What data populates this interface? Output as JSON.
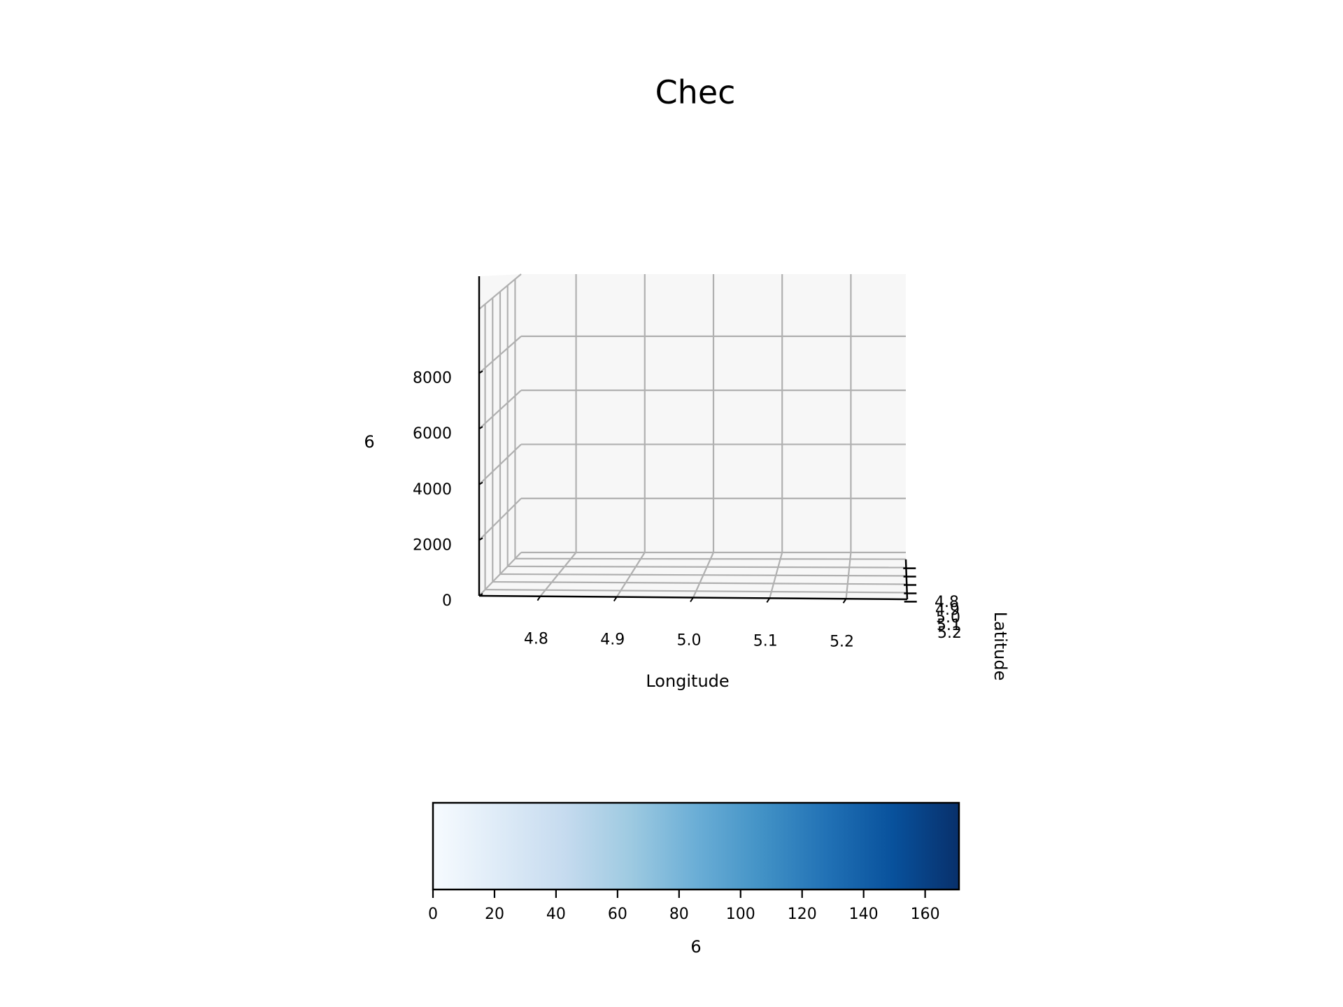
{
  "chart_data": {
    "type": "3d-bar",
    "title": "Chec",
    "xlabel": "Longitude",
    "ylabel": "Latitude",
    "zlabel": "6",
    "x_ticks": [
      "4.8",
      "4.9",
      "5.0",
      "5.1",
      "5.2"
    ],
    "y_ticks": [
      "4.8",
      "4.9",
      "5.0",
      "5.1",
      "5.2"
    ],
    "z_ticks": [
      "0",
      "2000",
      "4000",
      "6000",
      "8000"
    ],
    "xlim": [
      4.72,
      5.28
    ],
    "ylim": [
      4.72,
      5.28
    ],
    "zlim": [
      0,
      10300
    ],
    "values": [],
    "grid": true,
    "colorbar": {
      "label": "6",
      "colormap": "Blues",
      "range": [
        0,
        171
      ],
      "ticks": [
        "0",
        "20",
        "40",
        "60",
        "80",
        "100",
        "120",
        "140",
        "160"
      ],
      "orientation": "horizontal",
      "colors": [
        "#f7fbff",
        "#deebf7",
        "#c6dbef",
        "#9ecae1",
        "#6baed6",
        "#4292c6",
        "#2171b5",
        "#08519c",
        "#08306b"
      ]
    },
    "colors": {
      "pane": "#f7f7f7",
      "grid": "#b0b0b0",
      "axis": "#000000"
    }
  }
}
